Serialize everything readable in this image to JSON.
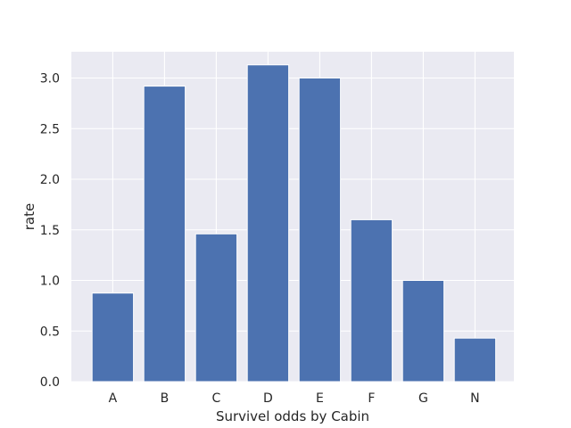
{
  "chart_data": {
    "type": "bar",
    "categories": [
      "A",
      "B",
      "C",
      "D",
      "E",
      "F",
      "G",
      "N"
    ],
    "values": [
      0.875,
      2.92,
      1.46,
      3.13,
      3.0,
      1.6,
      1.0,
      0.43
    ],
    "title": "",
    "xlabel": "Survivel odds by Cabin",
    "ylabel": "rate",
    "ylim": [
      0,
      3.26
    ],
    "yticks": [
      0.0,
      0.5,
      1.0,
      1.5,
      2.0,
      2.5,
      3.0
    ],
    "ytick_labels": [
      "0.0",
      "0.5",
      "1.0",
      "1.5",
      "2.0",
      "2.5",
      "3.0"
    ],
    "grid": true,
    "colors": {
      "bar": "#4c72b0",
      "plot_bg": "#eaeaf2",
      "grid": "#ffffff"
    }
  }
}
